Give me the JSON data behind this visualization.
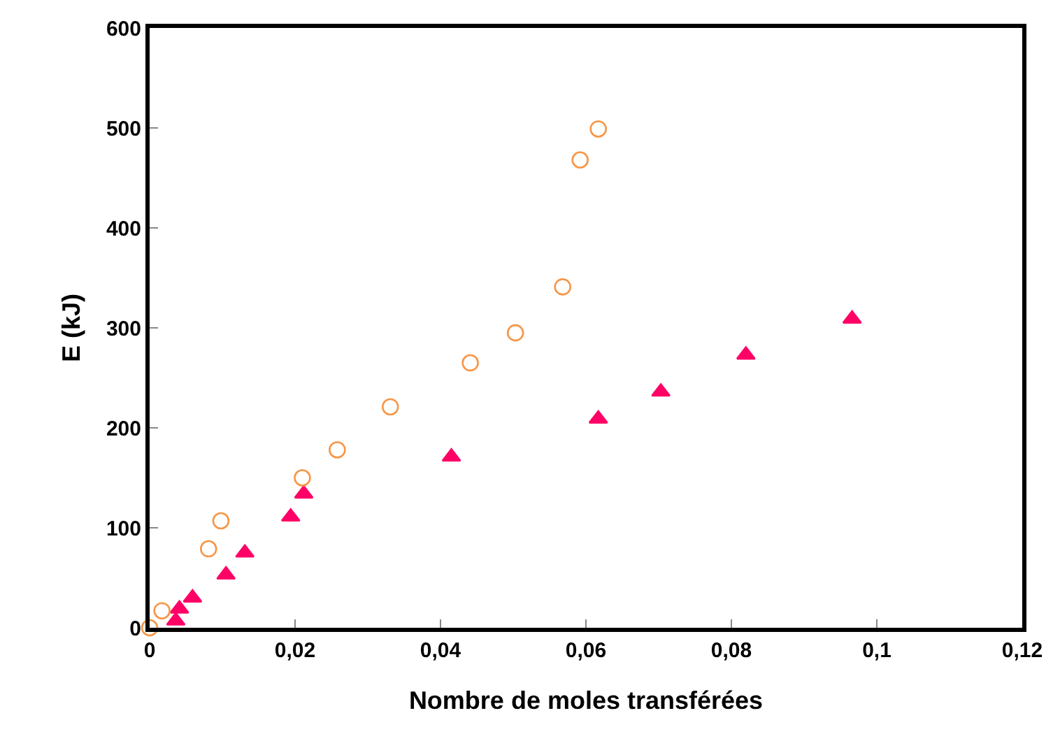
{
  "chart_data": {
    "type": "scatter",
    "xlabel": "Nombre de moles transférées",
    "ylabel": "E (kJ)",
    "xlim": [
      0,
      0.12
    ],
    "ylim": [
      0,
      600
    ],
    "xticks": [
      0,
      {
        "value": 0.02,
        "label": "0,02"
      },
      {
        "value": 0.04,
        "label": "0,04"
      },
      {
        "value": 0.06,
        "label": "0,06"
      },
      {
        "value": 0.08,
        "label": "0,08"
      },
      {
        "value": 0.1,
        "label": "0,1"
      },
      {
        "value": 0.12,
        "label": "0,12"
      }
    ],
    "yticks": [
      0,
      100,
      200,
      300,
      400,
      500,
      600
    ],
    "series": [
      {
        "color": "#ff0066",
        "marker": "triangle",
        "x": [
          0.0036,
          0.0041,
          0.0059,
          0.0105,
          0.0131,
          0.0194,
          0.0212,
          0.0415,
          0.0617,
          0.0703,
          0.082,
          0.0966
        ],
        "values": [
          7,
          19,
          30,
          53,
          75,
          111,
          134,
          171,
          209,
          236,
          273,
          309
        ]
      },
      {
        "color": "#f79646",
        "marker": "circle",
        "x": [
          0,
          0.0017,
          0.0081,
          0.0098,
          0.021,
          0.0258,
          0.0331,
          0.0441,
          0.0503,
          0.0568,
          0.0592,
          0.0617
        ],
        "values": [
          0,
          17,
          79,
          107,
          150,
          178,
          221,
          265,
          295,
          341,
          468,
          499
        ]
      }
    ]
  }
}
